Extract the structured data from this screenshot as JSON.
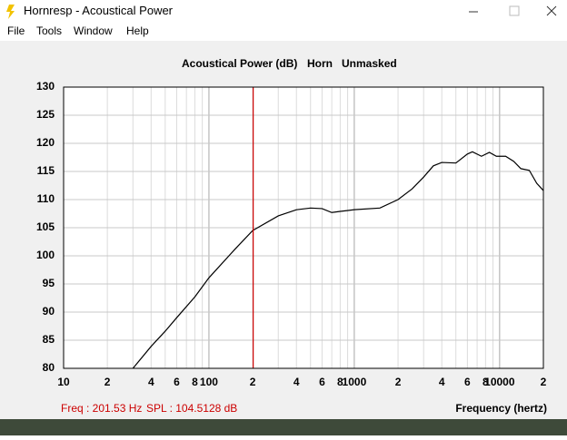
{
  "window": {
    "title": "Hornresp - Acoustical Power",
    "menu": [
      "File",
      "Tools",
      "Window",
      "Help"
    ]
  },
  "chart_data": {
    "type": "line",
    "title_parts": [
      "Acoustical Power (dB)",
      "Horn",
      "Unmasked"
    ],
    "xlabel": "Frequency (hertz)",
    "xscale": "log",
    "xlim": [
      10,
      20000
    ],
    "xticks": [
      10,
      {
        "value": 20,
        "label": "2"
      },
      {
        "value": 40,
        "label": "4"
      },
      {
        "value": 60,
        "label": "6"
      },
      {
        "value": 80,
        "label": "8"
      },
      100,
      {
        "value": 200,
        "label": "2"
      },
      {
        "value": 400,
        "label": "4"
      },
      {
        "value": 600,
        "label": "6"
      },
      {
        "value": 800,
        "label": "8"
      },
      1000,
      {
        "value": 2000,
        "label": "2"
      },
      {
        "value": 4000,
        "label": "4"
      },
      {
        "value": 6000,
        "label": "6"
      },
      {
        "value": 8000,
        "label": "8"
      },
      10000,
      {
        "value": 20000,
        "label": "2"
      }
    ],
    "xminor_ticks": [
      30,
      50,
      70,
      90,
      300,
      500,
      700,
      900,
      3000,
      5000,
      7000,
      9000
    ],
    "ylim": [
      80,
      130
    ],
    "yticks": [
      80,
      85,
      90,
      95,
      100,
      105,
      110,
      115,
      120,
      125,
      130
    ],
    "grid": true,
    "x": [
      30,
      40,
      50,
      60,
      80,
      100,
      150,
      200,
      300,
      400,
      500,
      600,
      700,
      800,
      1000,
      1500,
      2000,
      2500,
      3000,
      3500,
      4000,
      5000,
      6000,
      6500,
      7500,
      8500,
      9500,
      11000,
      12500,
      14000,
      16000,
      18000,
      20000
    ],
    "series": [
      {
        "color": "#000000",
        "values": [
          80,
          83.9,
          86.6,
          89.0,
          92.7,
          96.1,
          101.1,
          104.5,
          107.1,
          108.2,
          108.5,
          108.4,
          107.7,
          107.9,
          108.2,
          108.5,
          110.0,
          111.9,
          114.0,
          116.0,
          116.6,
          116.5,
          118.1,
          118.5,
          117.7,
          118.4,
          117.7,
          117.7,
          116.8,
          115.5,
          115.2,
          112.9,
          111.6
        ]
      }
    ],
    "cursor": {
      "x": 201.53,
      "y": 104.5128,
      "color": "#cc0000",
      "x_label": "Freq : 201.53 Hz",
      "y_label": "SPL : 104.5128 dB"
    }
  }
}
